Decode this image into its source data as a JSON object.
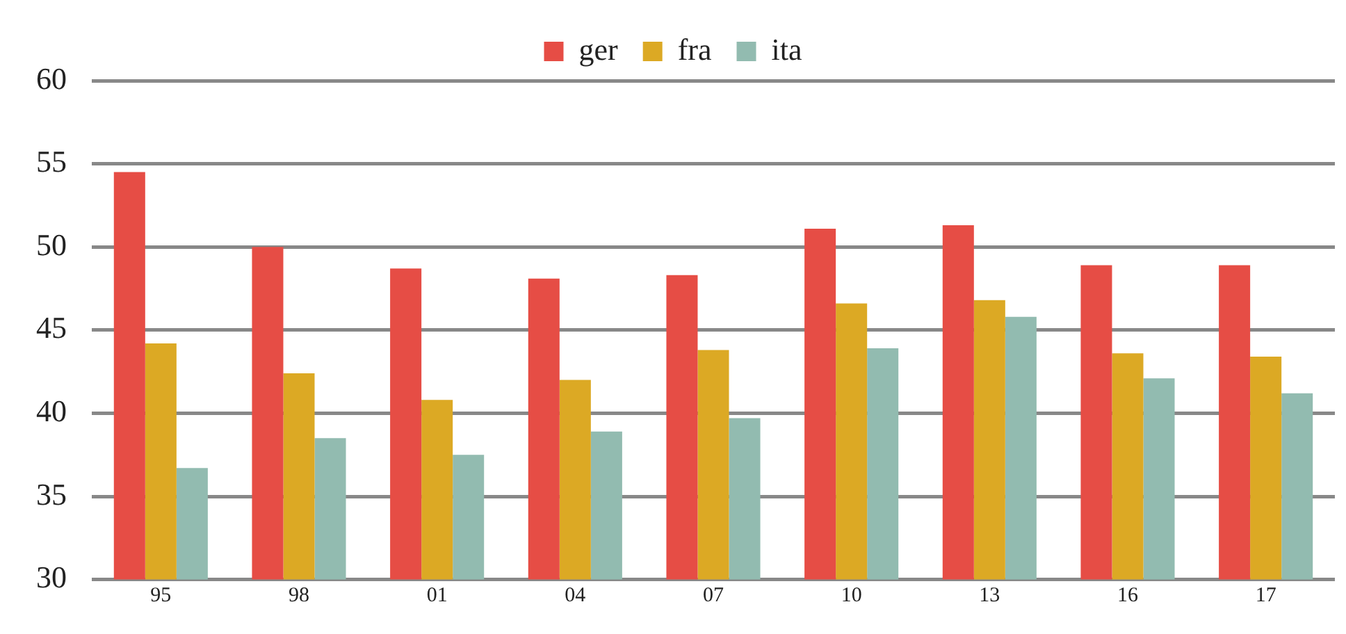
{
  "chart_data": {
    "type": "bar",
    "categories": [
      "95",
      "98",
      "01",
      "04",
      "07",
      "10",
      "13",
      "16",
      "17"
    ],
    "series": [
      {
        "name": "ger",
        "color": "#e64d45",
        "values": [
          54.5,
          50.0,
          48.7,
          48.1,
          48.3,
          51.1,
          51.3,
          48.9,
          48.9
        ]
      },
      {
        "name": "fra",
        "color": "#dca924",
        "values": [
          44.2,
          42.4,
          40.8,
          42.0,
          43.8,
          46.6,
          46.8,
          43.6,
          43.4
        ]
      },
      {
        "name": "ita",
        "color": "#92bbb0",
        "values": [
          36.7,
          38.5,
          37.5,
          38.9,
          39.7,
          43.9,
          45.8,
          42.1,
          41.2
        ]
      }
    ],
    "ylim": [
      30,
      60
    ],
    "yticks": [
      30,
      35,
      40,
      45,
      50,
      55,
      60
    ],
    "grid": "y",
    "legend": "top"
  }
}
